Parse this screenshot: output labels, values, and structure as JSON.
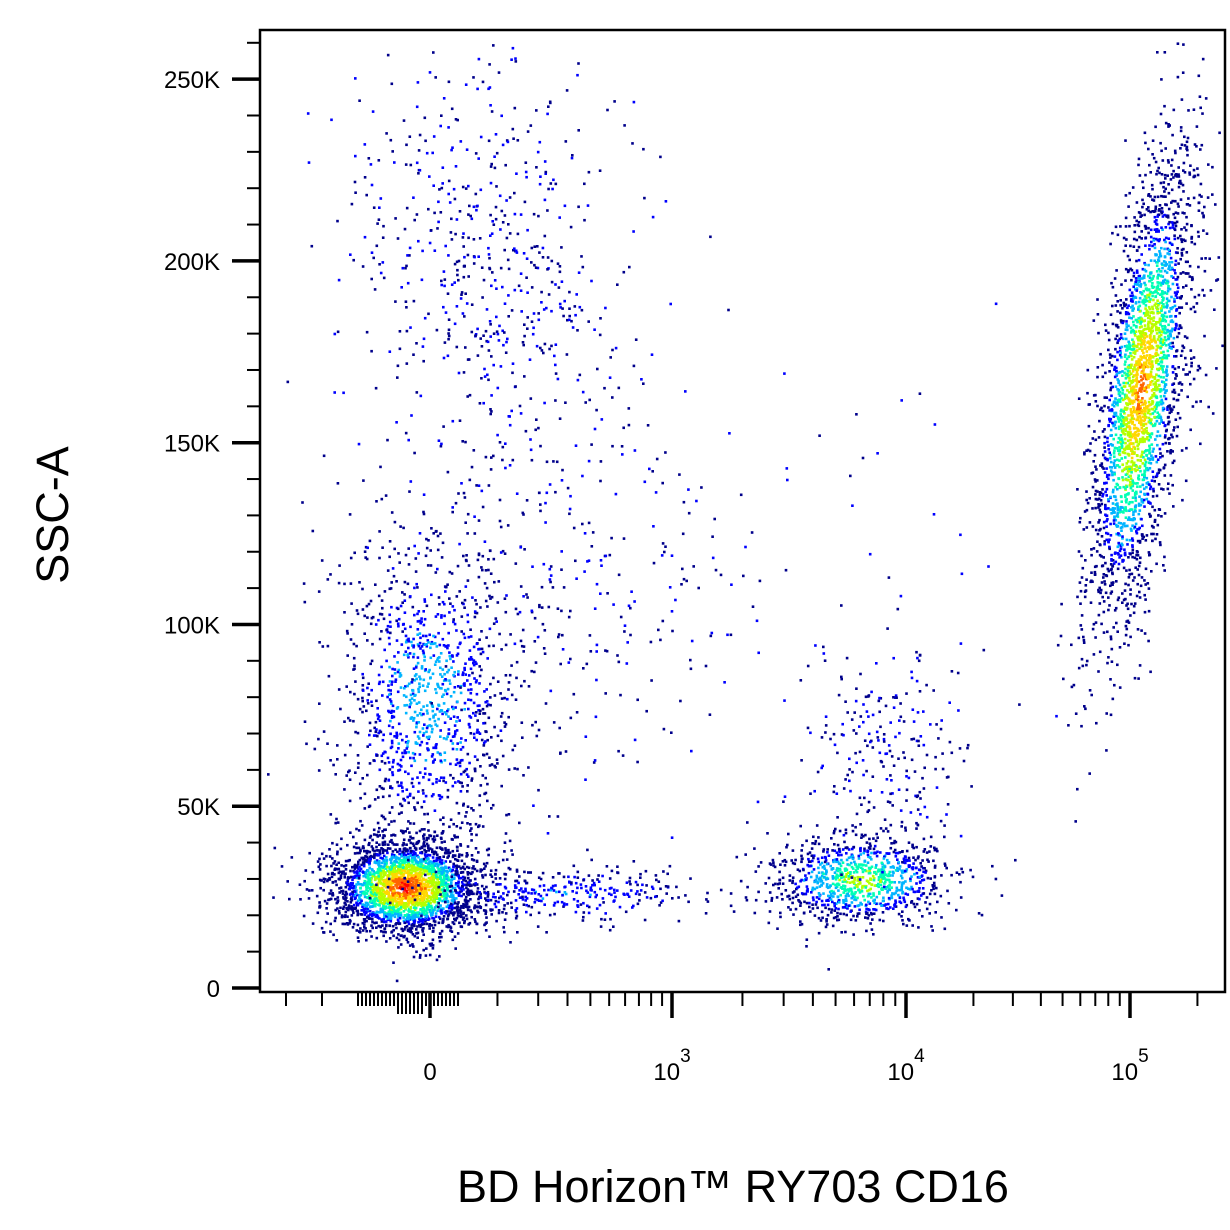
{
  "chart_data": {
    "type": "scatter",
    "subtype": "flow-cytometry-density-dot-plot",
    "xlabel": "BD Horizon™ RY703 CD16",
    "ylabel": "SSC-A",
    "x_scale": "biexponential",
    "x_ticks": [
      {
        "value": 0,
        "label": "0",
        "base": "0",
        "exp": ""
      },
      {
        "value": 1000,
        "label": "10^3",
        "base": "10",
        "exp": "3"
      },
      {
        "value": 10000,
        "label": "10^4",
        "base": "10",
        "exp": "4"
      },
      {
        "value": 100000,
        "label": "10^5",
        "base": "10",
        "exp": "5"
      }
    ],
    "y_scale": "linear",
    "ylim": [
      0,
      262144
    ],
    "y_ticks": [
      {
        "value": 0,
        "label": "0"
      },
      {
        "value": 50000,
        "label": "50K"
      },
      {
        "value": 100000,
        "label": "100K"
      },
      {
        "value": 150000,
        "label": "150K"
      },
      {
        "value": 200000,
        "label": "200K"
      },
      {
        "value": 250000,
        "label": "250K"
      }
    ],
    "color_scale": [
      "#00008b",
      "#0000ff",
      "#00b4ff",
      "#00ffb4",
      "#b4ff00",
      "#ffd700",
      "#ff6400",
      "#ff0000"
    ],
    "grid": false,
    "legend": "none",
    "populations": [
      {
        "x_center": 0,
        "y_center": 28000,
        "x_spread_decades": 0.12,
        "y_spread": 9000,
        "density": "highest"
      },
      {
        "x_center": 100,
        "y_center": 75000,
        "x_spread_decades": 0.3,
        "y_spread": 35000,
        "density": "low"
      },
      {
        "x_center": 300,
        "y_center": 200000,
        "x_spread_decades": 0.35,
        "y_spread": 30000,
        "density": "very-low"
      },
      {
        "x_center": 5500,
        "y_center": 32000,
        "x_spread_decades": 0.18,
        "y_spread": 9000,
        "density": "medium"
      },
      {
        "x_center": 110000,
        "y_center": 165000,
        "x_spread_decades": 0.05,
        "y_spread": 35000,
        "density": "high"
      }
    ]
  }
}
